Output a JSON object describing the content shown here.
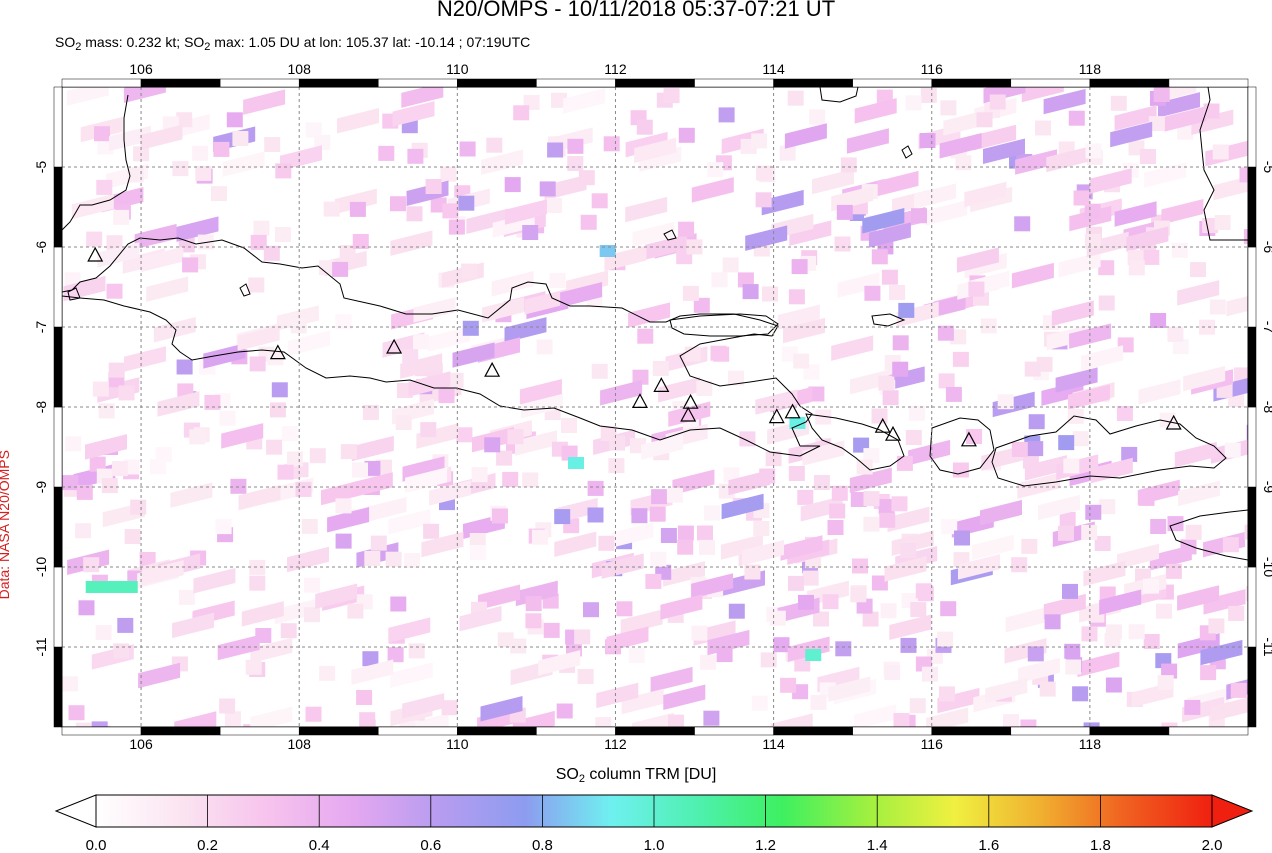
{
  "header": {
    "title": "N20/OMPS - 10/11/2018 05:37-07:21 UT",
    "subtitle_parts": [
      "SO",
      "2",
      " mass: 0.232 kt; SO",
      "2",
      " max: 1.05 DU at lon: 105.37 lat: -10.14 ; 07:19UTC"
    ]
  },
  "credit": "Data: NASA N20/OMPS",
  "map": {
    "lon_range": [
      105,
      120
    ],
    "lat_range": [
      -12,
      -4
    ],
    "lon_ticks": [
      "106",
      "108",
      "110",
      "112",
      "114",
      "116",
      "118"
    ],
    "lat_ticks": [
      "-5",
      "-6",
      "-7",
      "-8",
      "-9",
      "-10",
      "-11"
    ],
    "volcano_markers": [
      {
        "lon": 105.42,
        "lat": -6.1
      },
      {
        "lon": 107.73,
        "lat": -7.32
      },
      {
        "lon": 109.2,
        "lat": -7.25
      },
      {
        "lon": 110.44,
        "lat": -7.54
      },
      {
        "lon": 112.31,
        "lat": -7.93
      },
      {
        "lon": 112.58,
        "lat": -7.73
      },
      {
        "lon": 112.95,
        "lat": -7.94
      },
      {
        "lon": 112.92,
        "lat": -8.1
      },
      {
        "lon": 114.04,
        "lat": -8.12
      },
      {
        "lon": 114.24,
        "lat": -8.06
      },
      {
        "lon": 115.38,
        "lat": -8.24
      },
      {
        "lon": 115.51,
        "lat": -8.34
      },
      {
        "lon": 116.47,
        "lat": -8.41
      },
      {
        "lon": 119.06,
        "lat": -8.2
      }
    ],
    "highlight_pixels": [
      {
        "lon": 105.3,
        "lat": -10.25,
        "value": 1.05
      },
      {
        "lon": 111.4,
        "lat": -8.7,
        "value": 0.95
      },
      {
        "lon": 114.4,
        "lat": -11.1,
        "value": 1.0
      },
      {
        "lon": 111.8,
        "lat": -6.05,
        "value": 0.85
      },
      {
        "lon": 114.2,
        "lat": -8.2,
        "value": 0.95
      }
    ]
  },
  "colorbar": {
    "label_parts": [
      "SO",
      "2",
      " column TRM [DU]"
    ],
    "ticks": [
      "0.0",
      "0.2",
      "0.4",
      "0.6",
      "0.8",
      "1.0",
      "1.2",
      "1.4",
      "1.6",
      "1.8",
      "2.0"
    ],
    "colors": [
      "#ffffff",
      "#fbe4f0",
      "#f7c3ee",
      "#e4a8f0",
      "#b79cf0",
      "#8d9cf0",
      "#6ff0f0",
      "#4ff0b0",
      "#3ef060",
      "#a0f040",
      "#f0f040",
      "#f0b030",
      "#f06020",
      "#f02010"
    ]
  }
}
